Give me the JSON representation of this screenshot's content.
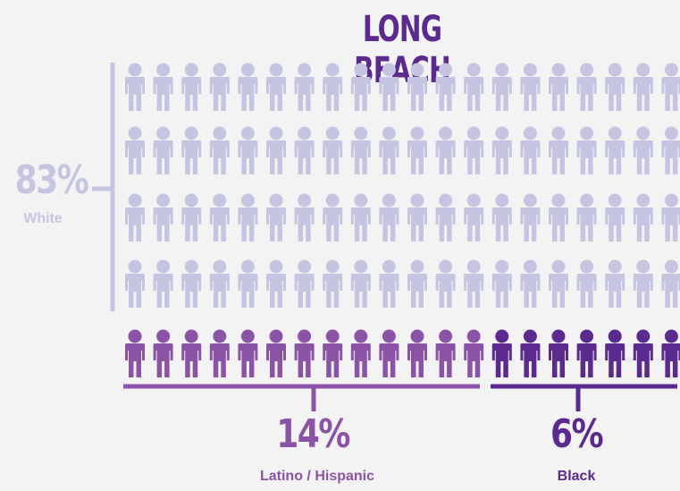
{
  "chart_data": {
    "type": "isotype",
    "title": "LONG BEACH",
    "series": [
      {
        "name": "White",
        "percent_label": "83%",
        "value": 83,
        "icons": 80
      },
      {
        "name": "Latino / Hispanic",
        "percent_label": "14%",
        "value": 14,
        "icons": 13
      },
      {
        "name": "Black",
        "percent_label": "6%",
        "value": 6,
        "icons": 7
      }
    ],
    "colors": {
      "White": "#c5c5e2",
      "Latino / Hispanic": "#8b53a6",
      "Black": "#5b2a8e"
    }
  }
}
